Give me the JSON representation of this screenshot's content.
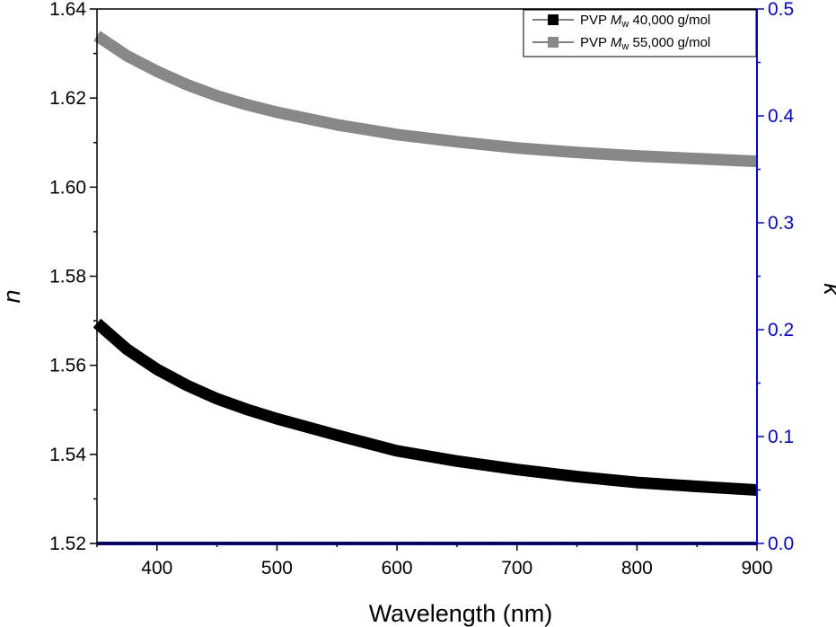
{
  "chart_data": {
    "type": "line",
    "title": "",
    "xlabel": "Wavelength (nm)",
    "ylabel": "n",
    "y2label": "k",
    "xlim": [
      350,
      900
    ],
    "ylim": [
      1.52,
      1.64
    ],
    "y2lim": [
      0.0,
      0.5
    ],
    "x_ticks": [
      400,
      500,
      600,
      700,
      800,
      900
    ],
    "y_ticks": [
      1.52,
      1.54,
      1.56,
      1.58,
      1.6,
      1.62,
      1.64
    ],
    "y_tick_labels": [
      "1.52",
      "1.54",
      "1.56",
      "1.58",
      "1.60",
      "1.62",
      "1.64"
    ],
    "y2_ticks": [
      0.0,
      0.1,
      0.2,
      0.3,
      0.4,
      0.5
    ],
    "y2_tick_labels": [
      "0.0",
      "0.1",
      "0.2",
      "0.3",
      "0.4",
      "0.5"
    ],
    "legend_position": "top-right",
    "series": [
      {
        "name": "PVP Mw 40,000 g/mol",
        "legend_prefix": "PVP ",
        "legend_italic": "M",
        "legend_sub": "w",
        "legend_suffix": " 40,000 g/mol",
        "axis": "left",
        "color": "#000000",
        "x": [
          350,
          375,
          400,
          425,
          450,
          475,
          500,
          550,
          600,
          650,
          700,
          750,
          800,
          850,
          900
        ],
        "y": [
          1.5695,
          1.5636,
          1.5591,
          1.5555,
          1.5525,
          1.5501,
          1.548,
          1.5443,
          1.5408,
          1.5385,
          1.5366,
          1.535,
          1.5337,
          1.5328,
          1.532
        ]
      },
      {
        "name": "PVP Mw 55,000 g/mol",
        "legend_prefix": "PVP ",
        "legend_italic": "M",
        "legend_sub": "w",
        "legend_suffix": " 55,000 g/mol",
        "axis": "left",
        "color": "#888888",
        "x": [
          350,
          375,
          400,
          425,
          450,
          475,
          500,
          550,
          600,
          650,
          700,
          750,
          800,
          850,
          900
        ],
        "y": [
          1.634,
          1.6295,
          1.626,
          1.623,
          1.6205,
          1.6185,
          1.6168,
          1.614,
          1.6118,
          1.6102,
          1.6088,
          1.6078,
          1.607,
          1.6064,
          1.6058
        ]
      },
      {
        "name": "k",
        "axis": "right",
        "color": "#0000ff",
        "x": [
          350,
          900
        ],
        "y": [
          0.0,
          0.0
        ]
      }
    ]
  }
}
